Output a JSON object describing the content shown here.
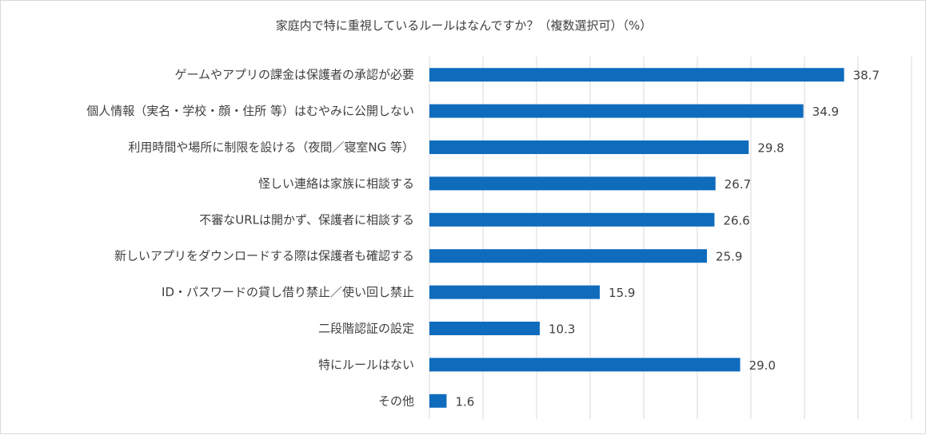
{
  "chart_data": {
    "type": "bar",
    "orientation": "horizontal",
    "title": "家庭内で特に重視しているルールはなんですか？（複数選択可）（%）",
    "categories": [
      "ゲームやアプリの課金は保護者の承認が必要",
      "個人情報（実名・学校・顔・住所 等）はむやみに公開しない",
      "利用時間や場所に制限を設ける（夜間／寝室NG 等）",
      "怪しい連絡は家族に相談する",
      "不審なURLは開かず、保護者に相談する",
      "新しいアプリをダウンロードする際は保護者も確認する",
      "ID・パスワードの貸し借り禁止／使い回し禁止",
      "二段階認証の設定",
      "特にルールはない",
      "その他"
    ],
    "values": [
      38.7,
      34.9,
      29.8,
      26.7,
      26.6,
      25.9,
      15.9,
      10.3,
      29.0,
      1.6
    ],
    "value_labels": [
      "38.7",
      "34.9",
      "29.8",
      "26.7",
      "26.6",
      "25.9",
      "15.9",
      "10.3",
      "29.0",
      "1.6"
    ],
    "xlim": [
      0,
      45
    ],
    "grid_step": 5,
    "grid": true,
    "legend": "none",
    "bar_color": "#0f6cbd",
    "grid_color": "#d9d9d9"
  }
}
